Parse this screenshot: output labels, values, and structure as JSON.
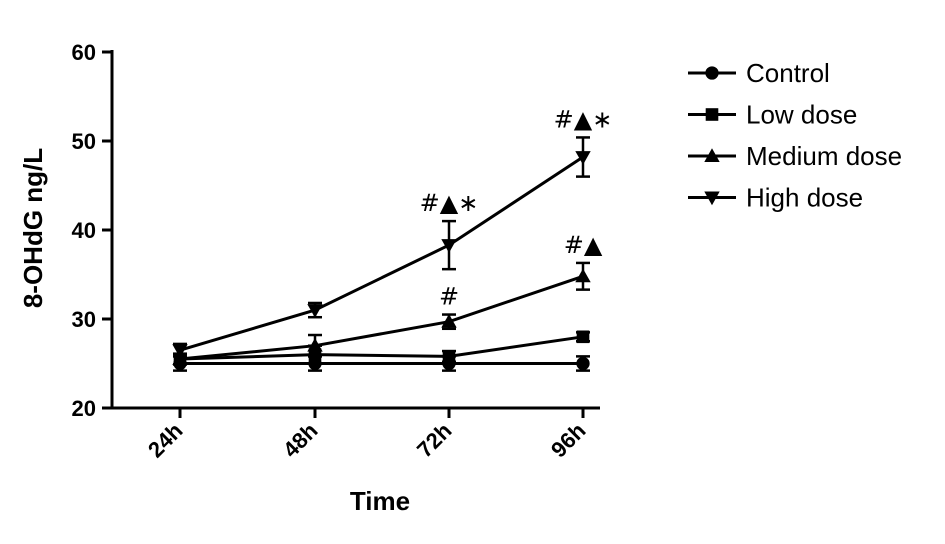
{
  "chart_data": {
    "type": "line",
    "xlabel": "Time",
    "ylabel": "8-OHdG  ng/L",
    "categories": [
      "24h",
      "48h",
      "72h",
      "96h"
    ],
    "ylim": [
      20,
      60
    ],
    "yticks": [
      "20",
      "30",
      "40",
      "50",
      "60"
    ],
    "ytick_values": [
      20,
      30,
      40,
      50,
      60
    ],
    "legend_position": "right",
    "series": [
      {
        "name": "Control",
        "marker": "circle",
        "values": [
          25.0,
          25.0,
          25.0,
          25.0
        ],
        "errors": [
          0.8,
          0.8,
          0.8,
          0.8
        ]
      },
      {
        "name": "Low dose",
        "marker": "square",
        "values": [
          25.5,
          26.0,
          25.8,
          28.0
        ],
        "errors": [
          0.6,
          1.0,
          0.6,
          0.5
        ]
      },
      {
        "name": "Medium dose",
        "marker": "triangle-up",
        "values": [
          25.5,
          27.0,
          29.7,
          34.8
        ],
        "errors": [
          0.6,
          1.2,
          0.8,
          1.5
        ]
      },
      {
        "name": "High dose",
        "marker": "triangle-down",
        "values": [
          26.5,
          31.0,
          38.3,
          48.2
        ],
        "errors": [
          0.7,
          0.8,
          2.7,
          2.2
        ]
      }
    ],
    "annotations": [
      {
        "category": "72h",
        "y": 29.7,
        "text": "#"
      },
      {
        "category": "96h",
        "y": 34.8,
        "text": "#▲"
      },
      {
        "category": "72h",
        "y": 38.3,
        "text": "#▲∗"
      },
      {
        "category": "96h",
        "y": 48.2,
        "text": "#▲∗"
      }
    ]
  }
}
